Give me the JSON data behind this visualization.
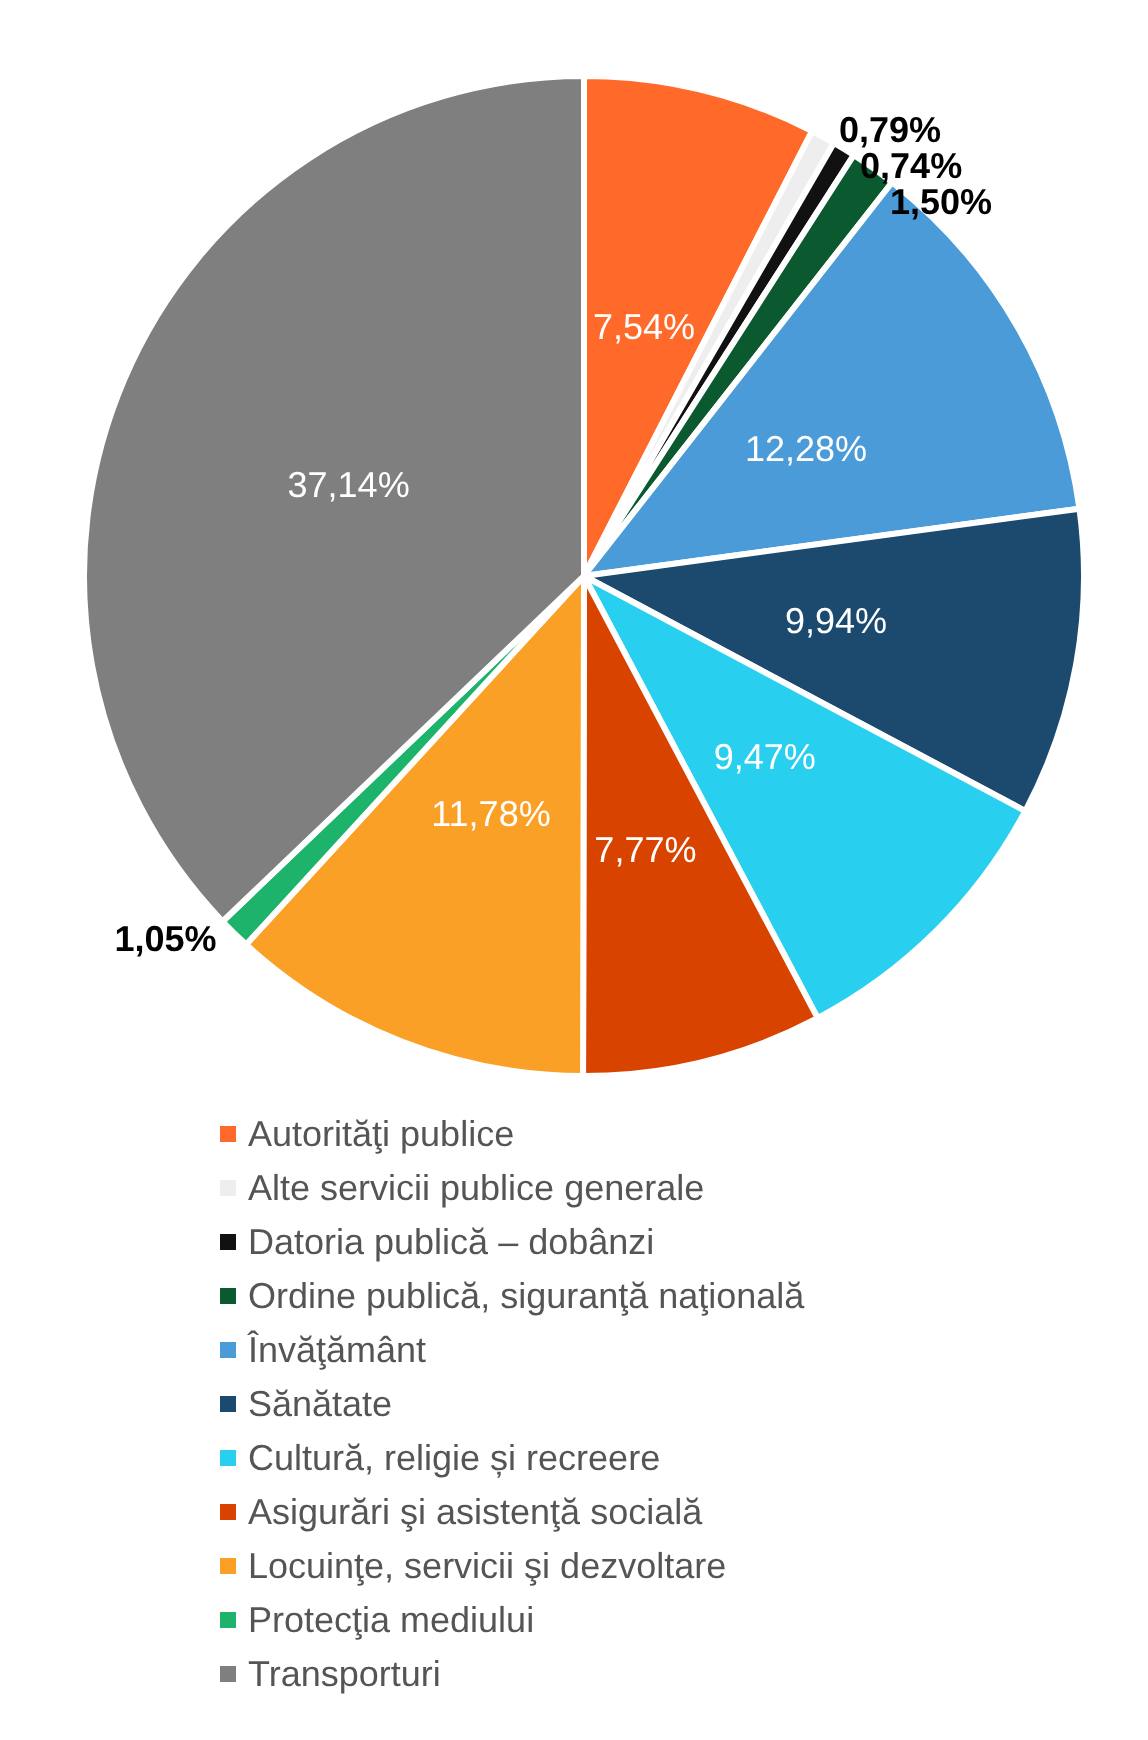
{
  "chart_data": {
    "type": "pie",
    "categories": [
      "Autorităţi publice",
      "Alte servicii publice generale",
      "Datoria publică – dobânzi",
      "Ordine publică, siguranţă naţională",
      "Învăţământ",
      "Sănătate",
      "Cultură, religie și recreere",
      "Asigurări şi asistenţă socială",
      "Locuinţe, servicii şi dezvoltare",
      "Protecţia mediului",
      "Transporturi"
    ],
    "values": [
      7.54,
      0.79,
      0.74,
      1.5,
      12.28,
      9.94,
      9.47,
      7.77,
      11.78,
      1.05,
      37.14
    ],
    "colors": [
      "#ff6a2a",
      "#eeeeee",
      "#111111",
      "#0b5a2f",
      "#4a9bd8",
      "#1b4a6e",
      "#29cfee",
      "#d84300",
      "#fba026",
      "#1eb36a",
      "#7f7f7f"
    ],
    "value_labels": [
      "7,54%",
      "0,79%",
      "0,74%",
      "1,50%",
      "12,28%",
      "9,94%",
      "9,47%",
      "7,77%",
      "11,78%",
      "1,05%",
      "37,14%"
    ],
    "legend": "bottom"
  }
}
